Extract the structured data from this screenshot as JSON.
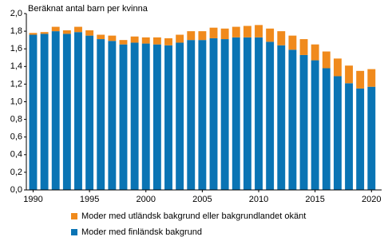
{
  "chart_data": {
    "type": "stacked_bar",
    "title": "Beräknat antal barn per kvinna",
    "x": [
      1990,
      1991,
      1992,
      1993,
      1994,
      1995,
      1996,
      1997,
      1998,
      1999,
      2000,
      2001,
      2002,
      2003,
      2004,
      2005,
      2006,
      2007,
      2008,
      2009,
      2010,
      2011,
      2012,
      2013,
      2014,
      2015,
      2016,
      2017,
      2018,
      2019,
      2020
    ],
    "xlim": [
      1989.4,
      2020.9
    ],
    "xticks": [
      1990,
      1995,
      2000,
      2005,
      2010,
      2015,
      2020
    ],
    "ylim": [
      0,
      2
    ],
    "yticks": [
      {
        "value": 0,
        "label": "0,0"
      },
      {
        "value": 0.2,
        "label": "0,2"
      },
      {
        "value": 0.4,
        "label": "0,4"
      },
      {
        "value": 0.6,
        "label": "0,6"
      },
      {
        "value": 0.8,
        "label": "0,8"
      },
      {
        "value": 1,
        "label": "1,0"
      },
      {
        "value": 1.2,
        "label": "1,2"
      },
      {
        "value": 1.4,
        "label": "1,4"
      },
      {
        "value": 1.6,
        "label": "1,6"
      },
      {
        "value": 1.8,
        "label": "1,8"
      },
      {
        "value": 2,
        "label": "2,0"
      }
    ],
    "grid": false,
    "series": [
      {
        "name": "Moder med finländsk bakgrund",
        "color": "#0a74b4",
        "values": [
          1.76,
          1.77,
          1.8,
          1.77,
          1.79,
          1.75,
          1.71,
          1.69,
          1.65,
          1.67,
          1.66,
          1.65,
          1.64,
          1.67,
          1.7,
          1.7,
          1.72,
          1.71,
          1.73,
          1.73,
          1.73,
          1.68,
          1.64,
          1.59,
          1.53,
          1.47,
          1.38,
          1.29,
          1.21,
          1.15,
          1.17
        ]
      },
      {
        "name": "Moder med utländsk bakgrund eller bakgrundlandet okänt",
        "color": "#f08a1c",
        "values": [
          0.02,
          0.02,
          0.05,
          0.04,
          0.06,
          0.06,
          0.05,
          0.06,
          0.05,
          0.07,
          0.07,
          0.08,
          0.08,
          0.09,
          0.1,
          0.1,
          0.12,
          0.12,
          0.12,
          0.13,
          0.14,
          0.15,
          0.16,
          0.16,
          0.18,
          0.18,
          0.19,
          0.2,
          0.2,
          0.2,
          0.2
        ]
      }
    ]
  }
}
